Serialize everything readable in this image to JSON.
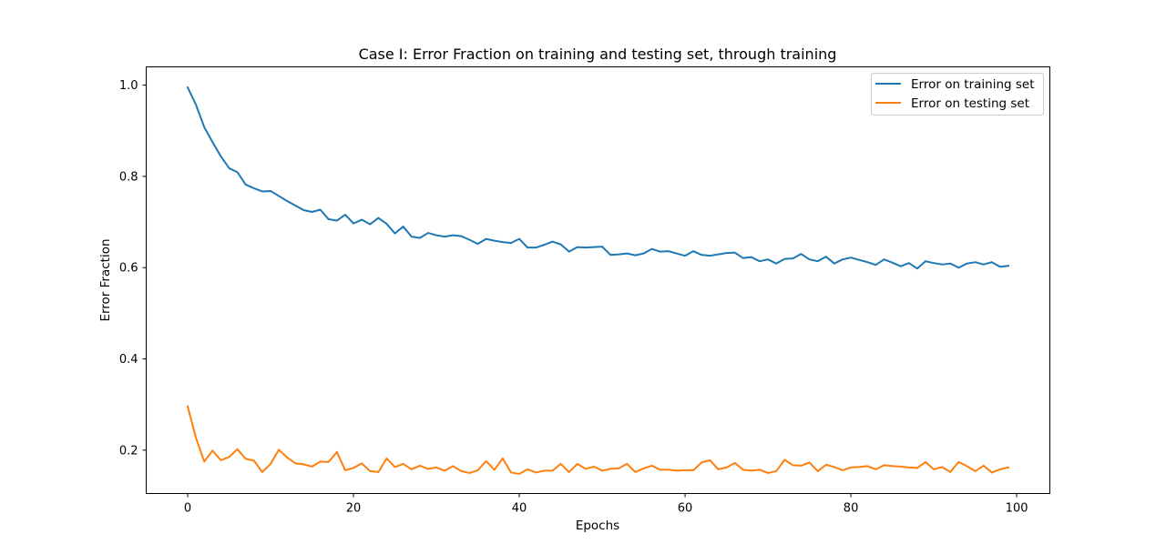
{
  "chart_data": {
    "type": "line",
    "title": "Case I: Error Fraction on training and testing set, through training",
    "xlabel": "Epochs",
    "ylabel": "Error Fraction",
    "xlim": [
      -5,
      104
    ],
    "ylim": [
      0.105,
      1.04
    ],
    "xticks": [
      0,
      20,
      40,
      60,
      80,
      100
    ],
    "yticks": [
      0.2,
      0.4,
      0.6,
      0.8,
      1.0
    ],
    "xtick_labels": [
      "0",
      "20",
      "40",
      "60",
      "80",
      "100"
    ],
    "ytick_labels": [
      "0.2",
      "0.4",
      "0.6",
      "0.8",
      "1.0"
    ],
    "grid": false,
    "legend_position": "top-right",
    "series": [
      {
        "name": "Error on training set",
        "color": "#1f77b4",
        "x": [
          0,
          1,
          2,
          3,
          4,
          5,
          6,
          7,
          8,
          9,
          10,
          11,
          12,
          13,
          14,
          15,
          16,
          17,
          18,
          19,
          20,
          21,
          22,
          23,
          24,
          25,
          26,
          27,
          28,
          29,
          30,
          31,
          32,
          33,
          34,
          35,
          36,
          37,
          38,
          39,
          40,
          41,
          42,
          43,
          44,
          45,
          46,
          47,
          48,
          49,
          50,
          51,
          52,
          53,
          54,
          55,
          56,
          57,
          58,
          59,
          60,
          61,
          62,
          63,
          64,
          65,
          66,
          67,
          68,
          69,
          70,
          71,
          72,
          73,
          74,
          75,
          76,
          77,
          78,
          79,
          80,
          81,
          82,
          83,
          84,
          85,
          86,
          87,
          88,
          89,
          90,
          91,
          92,
          93,
          94,
          95,
          96,
          97,
          98,
          99
        ],
        "values": [
          0.995,
          0.957,
          0.908,
          0.875,
          0.844,
          0.818,
          0.809,
          0.782,
          0.774,
          0.767,
          0.768,
          0.757,
          0.746,
          0.736,
          0.726,
          0.722,
          0.727,
          0.706,
          0.703,
          0.716,
          0.697,
          0.705,
          0.695,
          0.709,
          0.696,
          0.675,
          0.69,
          0.668,
          0.665,
          0.676,
          0.671,
          0.668,
          0.671,
          0.669,
          0.661,
          0.652,
          0.663,
          0.659,
          0.656,
          0.654,
          0.663,
          0.644,
          0.644,
          0.65,
          0.657,
          0.651,
          0.635,
          0.645,
          0.644,
          0.645,
          0.646,
          0.628,
          0.629,
          0.631,
          0.627,
          0.631,
          0.641,
          0.635,
          0.636,
          0.631,
          0.626,
          0.636,
          0.628,
          0.626,
          0.629,
          0.632,
          0.633,
          0.621,
          0.623,
          0.614,
          0.618,
          0.609,
          0.619,
          0.62,
          0.63,
          0.618,
          0.614,
          0.624,
          0.609,
          0.618,
          0.622,
          0.617,
          0.612,
          0.606,
          0.618,
          0.611,
          0.603,
          0.61,
          0.598,
          0.614,
          0.61,
          0.607,
          0.609,
          0.6,
          0.609,
          0.612,
          0.607,
          0.612,
          0.602,
          0.604
        ]
      },
      {
        "name": "Error on testing set",
        "color": "#ff7f0e",
        "x": [
          0,
          1,
          2,
          3,
          4,
          5,
          6,
          7,
          8,
          9,
          10,
          11,
          12,
          13,
          14,
          15,
          16,
          17,
          18,
          19,
          20,
          21,
          22,
          23,
          24,
          25,
          26,
          27,
          28,
          29,
          30,
          31,
          32,
          33,
          34,
          35,
          36,
          37,
          38,
          39,
          40,
          41,
          42,
          43,
          44,
          45,
          46,
          47,
          48,
          49,
          50,
          51,
          52,
          53,
          54,
          55,
          56,
          57,
          58,
          59,
          60,
          61,
          62,
          63,
          64,
          65,
          66,
          67,
          68,
          69,
          70,
          71,
          72,
          73,
          74,
          75,
          76,
          77,
          78,
          79,
          80,
          81,
          82,
          83,
          84,
          85,
          86,
          87,
          88,
          89,
          90,
          91,
          92,
          93,
          94,
          95,
          96,
          97,
          98,
          99
        ],
        "values": [
          0.296,
          0.227,
          0.175,
          0.199,
          0.178,
          0.185,
          0.202,
          0.181,
          0.177,
          0.152,
          0.17,
          0.201,
          0.184,
          0.171,
          0.169,
          0.164,
          0.175,
          0.174,
          0.196,
          0.156,
          0.161,
          0.171,
          0.154,
          0.152,
          0.182,
          0.163,
          0.17,
          0.158,
          0.166,
          0.159,
          0.162,
          0.155,
          0.165,
          0.154,
          0.15,
          0.156,
          0.176,
          0.157,
          0.182,
          0.151,
          0.148,
          0.158,
          0.151,
          0.155,
          0.155,
          0.17,
          0.152,
          0.17,
          0.159,
          0.164,
          0.155,
          0.159,
          0.16,
          0.17,
          0.152,
          0.16,
          0.166,
          0.157,
          0.157,
          0.155,
          0.156,
          0.156,
          0.173,
          0.178,
          0.158,
          0.162,
          0.172,
          0.157,
          0.155,
          0.157,
          0.15,
          0.154,
          0.179,
          0.167,
          0.166,
          0.173,
          0.154,
          0.168,
          0.163,
          0.156,
          0.162,
          0.163,
          0.165,
          0.158,
          0.167,
          0.165,
          0.164,
          0.162,
          0.161,
          0.174,
          0.158,
          0.163,
          0.152,
          0.174,
          0.165,
          0.154,
          0.166,
          0.151,
          0.158,
          0.162
        ]
      }
    ]
  }
}
